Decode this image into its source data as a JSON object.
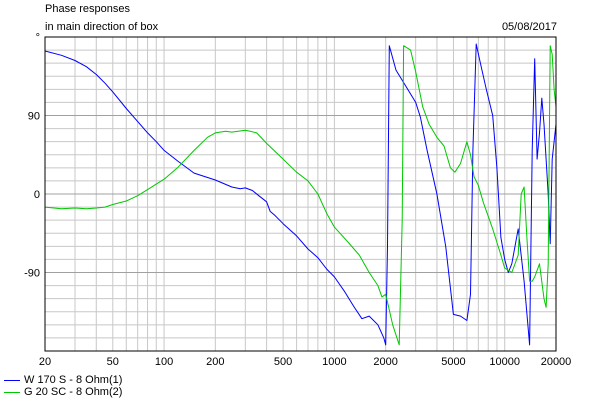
{
  "header": {
    "title_line1": "Phase responses",
    "title_line2": "in main direction of box",
    "date": "05/08/2017"
  },
  "chart_data": {
    "type": "line",
    "title": "Phase responses in main direction of box",
    "x_scale": "log",
    "xlim": [
      20,
      20000
    ],
    "ylim": [
      -180,
      180
    ],
    "x_ticks": [
      20,
      50,
      100,
      200,
      500,
      1000,
      2000,
      5000,
      10000,
      20000
    ],
    "x_tick_labels": [
      "20",
      "50",
      "100",
      "200",
      "500",
      "1000",
      "2000",
      "5000",
      "10000",
      "20000"
    ],
    "y_ticks": [
      180,
      90,
      0,
      -90
    ],
    "y_tick_labels": [
      "°",
      "90",
      "0",
      "-90"
    ],
    "grid": true,
    "legend_position": "bottom-left",
    "series": [
      {
        "name": "W 170 S - 8 Ohm(1)",
        "color": "#0000ff",
        "points": [
          [
            20,
            164
          ],
          [
            25,
            159
          ],
          [
            30,
            153
          ],
          [
            35,
            146
          ],
          [
            40,
            137
          ],
          [
            45,
            127
          ],
          [
            50,
            117
          ],
          [
            60,
            98
          ],
          [
            70,
            83
          ],
          [
            80,
            70
          ],
          [
            90,
            60
          ],
          [
            100,
            50
          ],
          [
            120,
            38
          ],
          [
            150,
            24
          ],
          [
            200,
            16
          ],
          [
            250,
            8
          ],
          [
            280,
            6
          ],
          [
            300,
            7
          ],
          [
            330,
            4
          ],
          [
            360,
            -2
          ],
          [
            400,
            -9
          ],
          [
            420,
            -20
          ],
          [
            450,
            -25
          ],
          [
            500,
            -34
          ],
          [
            600,
            -48
          ],
          [
            700,
            -63
          ],
          [
            800,
            -73
          ],
          [
            900,
            -86
          ],
          [
            1000,
            -95
          ],
          [
            1150,
            -112
          ],
          [
            1300,
            -129
          ],
          [
            1450,
            -143
          ],
          [
            1600,
            -140
          ],
          [
            1800,
            -150
          ],
          [
            1950,
            -165
          ],
          [
            2000,
            -173
          ],
          [
            2050,
            -60
          ],
          [
            2100,
            170
          ],
          [
            2300,
            142
          ],
          [
            2600,
            125
          ],
          [
            3000,
            105
          ],
          [
            3200,
            88
          ],
          [
            3500,
            50
          ],
          [
            4000,
            0
          ],
          [
            4500,
            -60
          ],
          [
            5000,
            -138
          ],
          [
            5500,
            -140
          ],
          [
            6000,
            -145
          ],
          [
            6300,
            -115
          ],
          [
            6500,
            50
          ],
          [
            6800,
            172
          ],
          [
            7200,
            150
          ],
          [
            7800,
            120
          ],
          [
            8500,
            90
          ],
          [
            9000,
            30
          ],
          [
            9500,
            -50
          ],
          [
            10000,
            -75
          ],
          [
            10500,
            -90
          ],
          [
            11000,
            -80
          ],
          [
            12000,
            -40
          ],
          [
            13000,
            -100
          ],
          [
            14000,
            -173
          ],
          [
            14500,
            50
          ],
          [
            15000,
            155
          ],
          [
            15500,
            40
          ],
          [
            16000,
            70
          ],
          [
            16500,
            110
          ],
          [
            17000,
            80
          ],
          [
            17500,
            40
          ],
          [
            18000,
            0
          ],
          [
            18500,
            -57
          ],
          [
            19000,
            40
          ],
          [
            20000,
            80
          ]
        ]
      },
      {
        "name": "G 20 SC - 8 Ohm(2)",
        "color": "#00c800",
        "points": [
          [
            20,
            -15
          ],
          [
            25,
            -17
          ],
          [
            30,
            -16
          ],
          [
            35,
            -17
          ],
          [
            40,
            -16
          ],
          [
            45,
            -15
          ],
          [
            50,
            -12
          ],
          [
            60,
            -8
          ],
          [
            70,
            -2
          ],
          [
            80,
            5
          ],
          [
            100,
            17
          ],
          [
            120,
            30
          ],
          [
            150,
            50
          ],
          [
            180,
            65
          ],
          [
            200,
            70
          ],
          [
            230,
            72
          ],
          [
            250,
            71
          ],
          [
            300,
            73
          ],
          [
            320,
            72
          ],
          [
            350,
            70
          ],
          [
            400,
            58
          ],
          [
            500,
            40
          ],
          [
            600,
            25
          ],
          [
            700,
            15
          ],
          [
            800,
            0
          ],
          [
            900,
            -22
          ],
          [
            1000,
            -38
          ],
          [
            1200,
            -55
          ],
          [
            1400,
            -70
          ],
          [
            1600,
            -90
          ],
          [
            1800,
            -105
          ],
          [
            1900,
            -118
          ],
          [
            2000,
            -115
          ],
          [
            2200,
            -150
          ],
          [
            2400,
            -173
          ],
          [
            2500,
            -30
          ],
          [
            2550,
            170
          ],
          [
            2800,
            165
          ],
          [
            3000,
            140
          ],
          [
            3300,
            100
          ],
          [
            3600,
            80
          ],
          [
            4000,
            65
          ],
          [
            4400,
            55
          ],
          [
            4800,
            30
          ],
          [
            5100,
            25
          ],
          [
            5500,
            35
          ],
          [
            6000,
            60
          ],
          [
            6300,
            45
          ],
          [
            6600,
            20
          ],
          [
            7000,
            10
          ],
          [
            7500,
            -10
          ],
          [
            8500,
            -40
          ],
          [
            9500,
            -70
          ],
          [
            10000,
            -85
          ],
          [
            11000,
            -90
          ],
          [
            12000,
            -70
          ],
          [
            12500,
            0
          ],
          [
            13000,
            8
          ],
          [
            13500,
            -50
          ],
          [
            14000,
            -100
          ],
          [
            14500,
            -100
          ],
          [
            15000,
            -95
          ],
          [
            16000,
            -80
          ],
          [
            17000,
            -120
          ],
          [
            17500,
            -130
          ],
          [
            18000,
            -80
          ],
          [
            18500,
            170
          ],
          [
            19000,
            160
          ],
          [
            19500,
            120
          ],
          [
            20000,
            100
          ]
        ]
      }
    ]
  }
}
